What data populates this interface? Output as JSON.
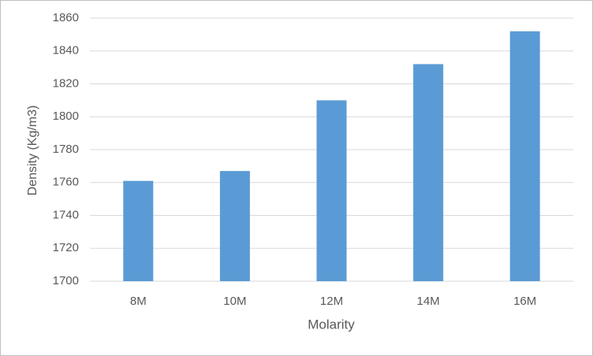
{
  "chart_data": {
    "type": "bar",
    "x_label": "Molarity",
    "y_label": "Density (Kg/m3)",
    "categories": [
      "8M",
      "10M",
      "12M",
      "14M",
      "16M"
    ],
    "values": [
      1761,
      1767,
      1810,
      1832,
      1852
    ],
    "color": "#5b9bd5",
    "ylim": [
      1700,
      1860
    ],
    "yticks": [
      1700,
      1720,
      1740,
      1760,
      1780,
      1800,
      1820,
      1840,
      1860
    ],
    "grid": true
  }
}
